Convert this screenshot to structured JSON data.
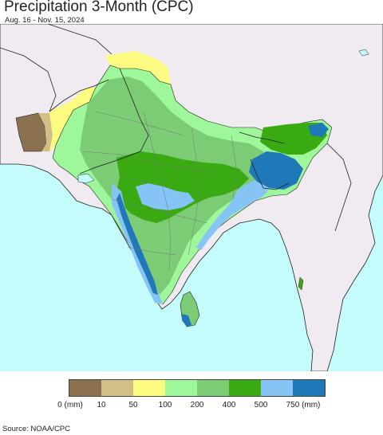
{
  "header": {
    "title": "Precipitation 3-Month (CPC)",
    "subtitle": "Aug. 16 - Nov. 15, 2024"
  },
  "legend": {
    "bins": [
      {
        "color": "#8b7150"
      },
      {
        "color": "#d2bf87"
      },
      {
        "color": "#fcfc80"
      },
      {
        "color": "#9ef79b"
      },
      {
        "color": "#7ccc76"
      },
      {
        "color": "#3aaa12"
      },
      {
        "color": "#87c4f6"
      },
      {
        "color": "#1f78b8"
      }
    ],
    "labels": [
      "0 (mm)",
      "10",
      "50",
      "100",
      "200",
      "400",
      "500",
      "750 (mm)"
    ]
  },
  "source": "Source: NOAA/CPC",
  "colors": {
    "ocean": "#c4fcfc",
    "land_outside": "#efebf0",
    "border": "#222222",
    "state_border": "#777777"
  }
}
